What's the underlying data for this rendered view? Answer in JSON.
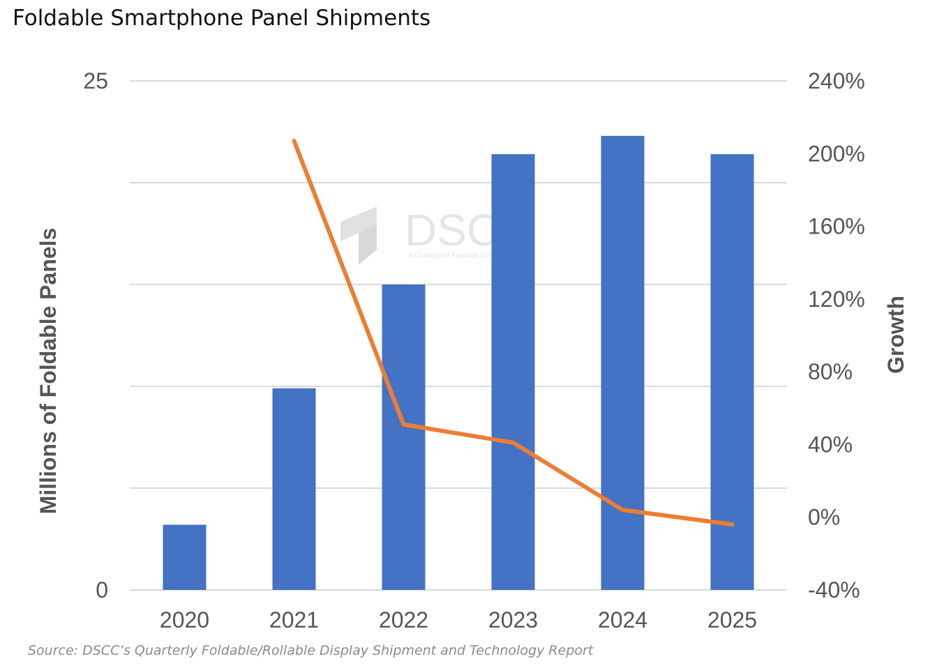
{
  "title": "Foldable Smartphone Panel Shipments",
  "source": "Source: DSCC’s Quarterly Foldable/Rollable Display Shipment and Technology Report",
  "watermark": {
    "brand": "DSCC",
    "tagline": "A Counterpoint Research Company"
  },
  "colors": {
    "bar": "#4472C4",
    "line": "#ED7D31",
    "grid": "#d9d9d9",
    "text": "#555555"
  },
  "chart_data": {
    "type": "bar",
    "categories": [
      "2020",
      "2021",
      "2022",
      "2023",
      "2024",
      "2025"
    ],
    "series": [
      {
        "type": "bar",
        "axis": "left",
        "values": [
          3.2,
          9.9,
          15.0,
          21.4,
          22.3,
          21.4
        ]
      },
      {
        "type": "line",
        "axis": "right",
        "values": [
          null,
          207,
          51,
          41,
          4,
          -4
        ]
      }
    ],
    "ylabel": "Millions of Foldable Panels",
    "y2label": "Growth",
    "ylim": [
      0,
      25
    ],
    "y2lim": [
      -40,
      240
    ],
    "yticks_left": [
      "25",
      "0"
    ],
    "yticks_right": [
      "240%",
      "200%",
      "160%",
      "120%",
      "80%",
      "40%",
      "0%",
      "-40%"
    ],
    "gridlines": 6,
    "grid": true,
    "legend": "none"
  }
}
